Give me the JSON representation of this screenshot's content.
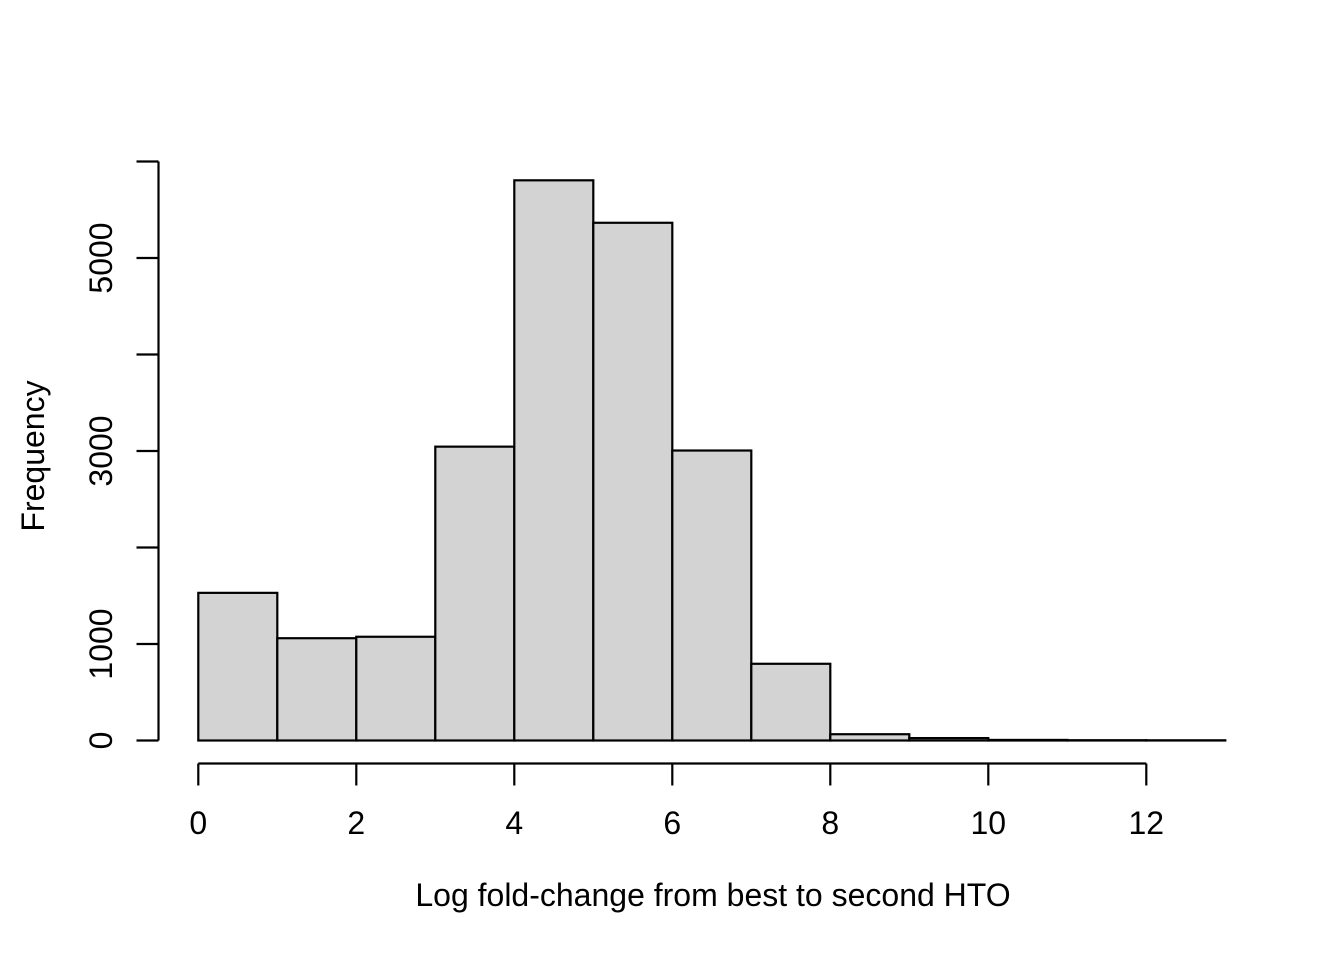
{
  "figure": {
    "background": "#ffffff"
  },
  "chart_data": {
    "type": "bar",
    "variant": "histogram",
    "title": "",
    "xlabel": "Log fold-change from best to second HTO",
    "ylabel": "Frequency",
    "bin_edges": [
      0,
      1,
      2,
      3,
      4,
      5,
      6,
      7,
      8,
      9,
      10,
      11,
      12,
      13
    ],
    "counts": [
      1530,
      1060,
      1075,
      3045,
      5805,
      5365,
      3005,
      795,
      65,
      25,
      6,
      3,
      2
    ],
    "xlim": [
      0,
      13
    ],
    "ylim": [
      0,
      6000
    ],
    "x_ticks": [
      0,
      2,
      4,
      6,
      8,
      10,
      12
    ],
    "x_tick_labels": [
      "0",
      "2",
      "4",
      "6",
      "8",
      "10",
      "12"
    ],
    "y_ticks": [
      0,
      1000,
      2000,
      3000,
      4000,
      5000,
      6000
    ],
    "y_labeled_ticks": [
      0,
      1000,
      3000,
      5000
    ],
    "y_tick_labels": [
      "0",
      "1000",
      "3000",
      "5000"
    ],
    "grid": false,
    "legend": false,
    "colors": {
      "bar_fill": "#d3d3d3",
      "bar_stroke": "#000000",
      "axis": "#000000",
      "text": "#000000",
      "background": "#ffffff"
    }
  }
}
